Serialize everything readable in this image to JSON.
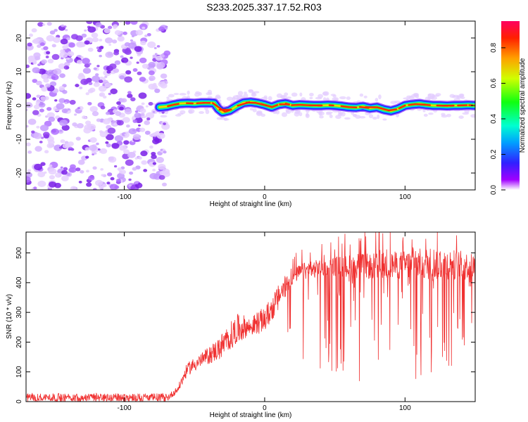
{
  "title": "S233.2025.337.17.52.R03",
  "chart_data": [
    {
      "type": "heatmap",
      "name": "spectrogram",
      "xlabel": "Height of straight line (km)",
      "ylabel": "Frequency (Hz)",
      "xlim": [
        -170,
        150
      ],
      "ylim": [
        -25,
        25
      ],
      "xticks": [
        -100,
        0,
        100
      ],
      "xtick_labels": [
        "-100",
        "0",
        "100"
      ],
      "yticks": [
        20,
        10,
        0,
        -10,
        -20
      ],
      "ytick_labels": [
        "20",
        "10",
        "0",
        "-10",
        "-20"
      ],
      "colorbar": {
        "label": "Normalized spectral amplitude",
        "range": [
          0,
          0.95
        ],
        "ticks": [
          0.0,
          0.2,
          0.4,
          0.6,
          0.8
        ],
        "tick_labels": [
          "0.0",
          "0.2",
          "0.4",
          "0.6",
          "0.8"
        ]
      },
      "noise_region_x": [
        -170,
        -75
      ],
      "signal_trace": {
        "x": [
          -75,
          -70,
          -65,
          -60,
          -55,
          -50,
          -45,
          -40,
          -36,
          -33,
          -30,
          -25,
          -20,
          -15,
          -10,
          -5,
          0,
          5,
          10,
          15,
          20,
          25,
          30,
          35,
          40,
          45,
          50,
          55,
          60,
          65,
          70,
          75,
          80,
          85,
          90,
          95,
          100,
          105,
          110,
          115,
          120,
          125,
          130,
          135,
          140,
          145,
          150
        ],
        "freq_hz": [
          -0.5,
          -0.3,
          0.2,
          0.6,
          0.7,
          0.6,
          0.8,
          0.8,
          0.7,
          -1.0,
          -2.0,
          -1.5,
          -0.2,
          0.8,
          1.0,
          0.7,
          0.2,
          -0.5,
          0.3,
          0.6,
          0.0,
          0.2,
          0.1,
          0.0,
          0.0,
          0.1,
          0.0,
          -0.2,
          -0.5,
          -0.6,
          -0.3,
          -0.8,
          -0.5,
          -1.2,
          -1.6,
          -1.0,
          0.0,
          0.3,
          0.5,
          0.2,
          0.0,
          0.0,
          -0.1,
          0.0,
          0.0,
          0.1,
          0.0
        ]
      }
    },
    {
      "type": "line",
      "name": "snr",
      "xlabel": "Height of straight line (km)",
      "ylabel": "SNR (10 * v/v)",
      "xlim": [
        -170,
        150
      ],
      "ylim": [
        0,
        570
      ],
      "xticks": [
        -100,
        0,
        100
      ],
      "xtick_labels": [
        "-100",
        "0",
        "100"
      ],
      "yticks": [
        0,
        100,
        200,
        300,
        400,
        500
      ],
      "ytick_labels": [
        "0",
        "100",
        "200",
        "300",
        "400",
        "500"
      ],
      "color": "#f03030",
      "envelope": {
        "x": [
          -170,
          -70,
          -62,
          -55,
          -45,
          -35,
          -25,
          -20,
          -15,
          -10,
          -5,
          0,
          5,
          10,
          15,
          20,
          25,
          30,
          40,
          50,
          60,
          80,
          100,
          120,
          140,
          150
        ],
        "mean": [
          10,
          10,
          40,
          110,
          140,
          170,
          210,
          240,
          250,
          250,
          265,
          275,
          310,
          355,
          390,
          420,
          435,
          440,
          450,
          455,
          455,
          455,
          460,
          465,
          460,
          455
        ],
        "max": [
          28,
          28,
          60,
          150,
          180,
          230,
          300,
          330,
          320,
          300,
          330,
          340,
          380,
          420,
          450,
          460,
          480,
          490,
          500,
          510,
          520,
          530,
          540,
          560,
          540,
          520
        ],
        "min": [
          0,
          0,
          15,
          80,
          100,
          120,
          150,
          160,
          170,
          170,
          170,
          170,
          190,
          200,
          200,
          180,
          150,
          100,
          60,
          60,
          50,
          20,
          30,
          80,
          100,
          140
        ]
      }
    }
  ]
}
